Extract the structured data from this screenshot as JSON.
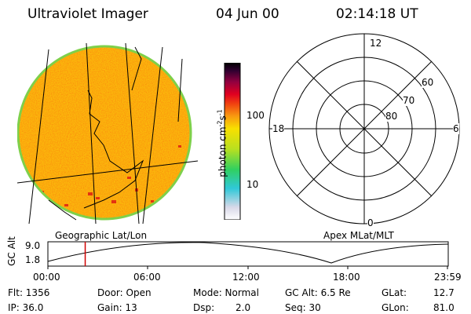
{
  "header": {
    "instrument": "Ultraviolet Imager",
    "date": "04 Jun 00",
    "time": "02:14:18 UT"
  },
  "colorbar": {
    "label": "photon cm",
    "label_sup1": "-2",
    "label_mid": "s",
    "label_sup2": "-1",
    "ticks": [
      "100",
      "10"
    ]
  },
  "polar_plot": {
    "mlt_labels": {
      "top": "12",
      "left": "18",
      "right": "6",
      "bottom": "0"
    },
    "lat_labels": [
      "60",
      "70",
      "80"
    ]
  },
  "map_labels": {
    "left": "Geographic Lat/Lon",
    "right": "Apex MLat/MLT"
  },
  "orbit_plot": {
    "ylabel": "GC Alt",
    "y_ticks": [
      "9.0",
      "1.8"
    ],
    "x_ticks": [
      "00:00",
      "06:00",
      "12:00",
      "18:00",
      "23:59"
    ],
    "current_time_hours": 2.24,
    "marker_color": "#d00000"
  },
  "info": {
    "flt": "Flt: 1356",
    "ip": "IP: 36.0",
    "door": "Door: Open",
    "gain": "Gain: 13",
    "mode": "Mode: Normal",
    "dsp_label": "Dsp:",
    "dsp_value": "2.0",
    "gc_alt": "GC Alt: 6.5 Re",
    "seq": "Seq: 30",
    "glat_label": "GLat:",
    "glat_value": "12.7",
    "glon_label": "GLon:",
    "glon_value": "81.0"
  }
}
